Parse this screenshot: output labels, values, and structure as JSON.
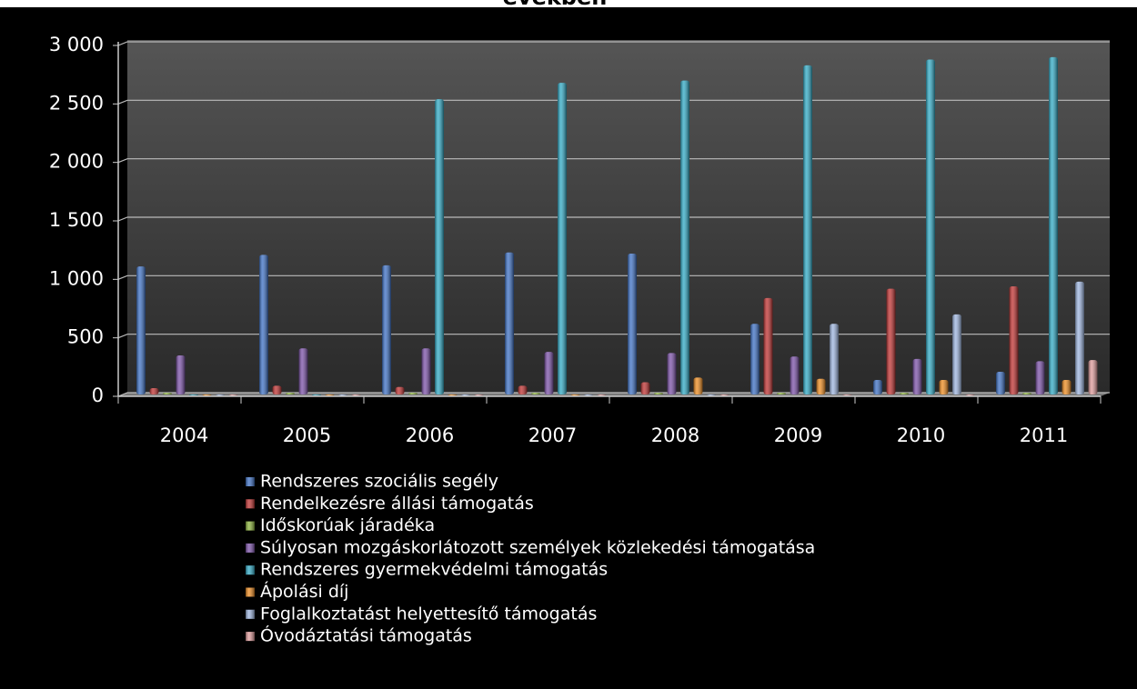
{
  "chart_data": {
    "type": "bar",
    "title": "években",
    "categories": [
      "2004",
      "2005",
      "2006",
      "2007",
      "2008",
      "2009",
      "2010",
      "2011"
    ],
    "series": [
      {
        "name": "Rendszeres szociális segély",
        "color": "#3b6fc4",
        "values": [
          1110,
          1210,
          1120,
          1230,
          1220,
          620,
          140,
          210
        ]
      },
      {
        "name": "Rendelkezésre állási támogatás",
        "color": "#c0302f",
        "values": [
          70,
          90,
          80,
          90,
          120,
          840,
          920,
          940
        ]
      },
      {
        "name": "Időskorúak járadéka",
        "color": "#8cb43a",
        "values": [
          30,
          30,
          30,
          30,
          30,
          30,
          30,
          30
        ]
      },
      {
        "name": "Súlyosan mozgáskorlátozott személyek közlekedési támogatása",
        "color": "#7a4fa8",
        "values": [
          350,
          410,
          410,
          380,
          370,
          340,
          320,
          300
        ]
      },
      {
        "name": "Rendszeres gyermekvédelmi támogatás",
        "color": "#2eaac6",
        "values": [
          10,
          10,
          2540,
          2680,
          2700,
          2830,
          2880,
          2900
        ]
      },
      {
        "name": "Ápolási díj",
        "color": "#f08c1e",
        "values": [
          5,
          5,
          5,
          5,
          160,
          150,
          140,
          140
        ]
      },
      {
        "name": "Foglalkoztatást helyettesítő támogatás",
        "color": "#9db5e0",
        "values": [
          5,
          5,
          5,
          5,
          5,
          620,
          700,
          980
        ]
      },
      {
        "name": "Óvodáztatási támogatás",
        "color": "#e09a9a",
        "values": [
          5,
          5,
          5,
          5,
          5,
          10,
          5,
          310
        ]
      }
    ],
    "ylim": [
      0,
      3000
    ],
    "yticks": [
      0,
      500,
      {
        "value": 1000,
        "label": "1 000"
      },
      {
        "value": 1500,
        "label": "1 500"
      },
      {
        "value": 2000,
        "label": "2 000"
      },
      {
        "value": 2500,
        "label": "2 500"
      },
      {
        "value": 3000,
        "label": "3 000"
      }
    ],
    "grid": true,
    "legend": "bottom"
  }
}
